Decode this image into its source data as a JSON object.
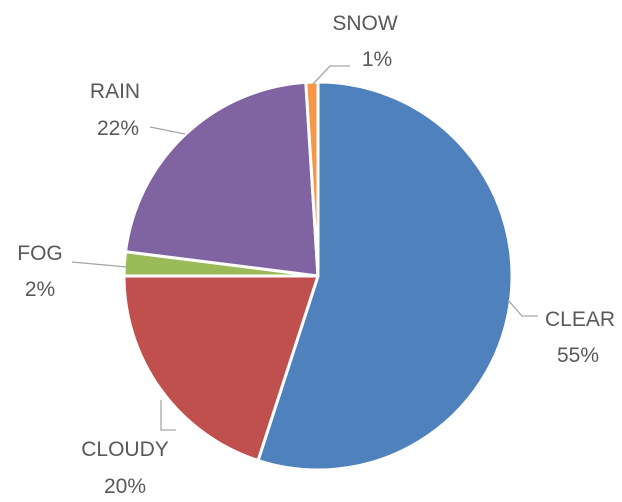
{
  "chart_data": {
    "type": "pie",
    "categories": [
      "CLEAR",
      "CLOUDY",
      "FOG",
      "RAIN",
      "SNOW"
    ],
    "values": [
      55,
      20,
      2,
      22,
      1
    ],
    "value_labels": [
      "55%",
      "20%",
      "2%",
      "22%",
      "1%"
    ],
    "colors": [
      "#4F81BD",
      "#C0504D",
      "#9BBB59",
      "#8064A2",
      "#F79646"
    ],
    "start_angle_deg": 0,
    "direction": "clockwise",
    "legend": "none",
    "title": ""
  }
}
